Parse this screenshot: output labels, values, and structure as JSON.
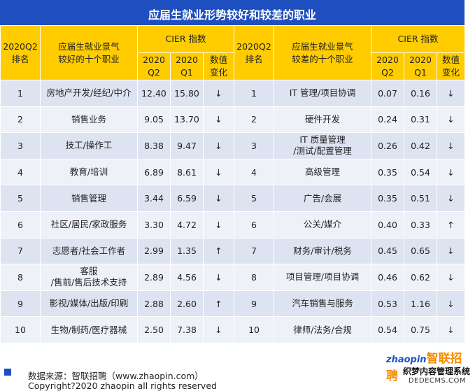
{
  "title": "应届生就业形势较好和较差的职业",
  "header": {
    "rank": "2020Q2\n排名",
    "good_jobs": "应届生就业景气\n较好的十个职业",
    "bad_jobs": "应届生就业景气\n较差的十个职业",
    "cier": "CIER 指数",
    "q2": "2020\nQ2",
    "q1": "2020\nQ1",
    "change": "数值\n变化"
  },
  "rows": [
    {
      "rank": "1",
      "good": "房地产开发/经纪/中介",
      "gq2": "12.40",
      "gq1": "15.80",
      "gchg": "↓",
      "rank2": "1",
      "bad": "IT 管理/项目协调",
      "bq2": "0.07",
      "bq1": "0.16",
      "bchg": "↓"
    },
    {
      "rank": "2",
      "good": "销售业务",
      "gq2": "9.05",
      "gq1": "13.70",
      "gchg": "↓",
      "rank2": "2",
      "bad": "硬件开发",
      "bq2": "0.24",
      "bq1": "0.31",
      "bchg": "↓"
    },
    {
      "rank": "3",
      "good": "技工/操作工",
      "gq2": "8.38",
      "gq1": "9.47",
      "gchg": "↓",
      "rank2": "3",
      "bad": "IT 质量管理\n/测试/配置管理",
      "bq2": "0.26",
      "bq1": "0.42",
      "bchg": "↓"
    },
    {
      "rank": "4",
      "good": "教育/培训",
      "gq2": "6.89",
      "gq1": "8.61",
      "gchg": "↓",
      "rank2": "4",
      "bad": "高级管理",
      "bq2": "0.35",
      "bq1": "0.54",
      "bchg": "↓"
    },
    {
      "rank": "5",
      "good": "销售管理",
      "gq2": "3.44",
      "gq1": "6.59",
      "gchg": "↓",
      "rank2": "5",
      "bad": "广告/会展",
      "bq2": "0.35",
      "bq1": "0.51",
      "bchg": "↓"
    },
    {
      "rank": "6",
      "good": "社区/居民/家政服务",
      "gq2": "3.30",
      "gq1": "4.72",
      "gchg": "↓",
      "rank2": "6",
      "bad": "公关/媒介",
      "bq2": "0.40",
      "bq1": "0.33",
      "bchg": "↑"
    },
    {
      "rank": "7",
      "good": "志愿者/社会工作者",
      "gq2": "2.99",
      "gq1": "1.35",
      "gchg": "↑",
      "rank2": "7",
      "bad": "财务/审计/税务",
      "bq2": "0.45",
      "bq1": "0.65",
      "bchg": "↓"
    },
    {
      "rank": "8",
      "good": "客服\n/售前/售后技术支持",
      "gq2": "2.89",
      "gq1": "4.56",
      "gchg": "↓",
      "rank2": "8",
      "bad": "项目管理/项目协调",
      "bq2": "0.46",
      "bq1": "0.62",
      "bchg": "↓"
    },
    {
      "rank": "9",
      "good": "影视/媒体/出版/印刷",
      "gq2": "2.88",
      "gq1": "2.60",
      "gchg": "↑",
      "rank2": "9",
      "bad": "汽车销售与服务",
      "bq2": "0.53",
      "bq1": "1.16",
      "bchg": "↓"
    },
    {
      "rank": "10",
      "good": "生物/制药/医疗器械",
      "gq2": "2.50",
      "gq1": "7.38",
      "gchg": "↓",
      "rank2": "10",
      "bad": "律师/法务/合规",
      "bq2": "0.54",
      "bq1": "0.75",
      "bchg": "↓"
    }
  ],
  "footer": {
    "source": "数据来源：智联招聘（www.zhaopin.com）",
    "copyright": "Copyright?2020 zhaopin all rights reserved"
  },
  "watermark": {
    "brand_en": "zhaopin",
    "brand_cn": "智联招聘",
    "line2": "织梦内容管理系统",
    "line3": "DEDECMS.COM"
  },
  "colors": {
    "title_bg": "#1e4fbf",
    "header_bg": "#ffcc00",
    "row_odd": "#dde3f1",
    "row_even": "#eef1f8"
  }
}
